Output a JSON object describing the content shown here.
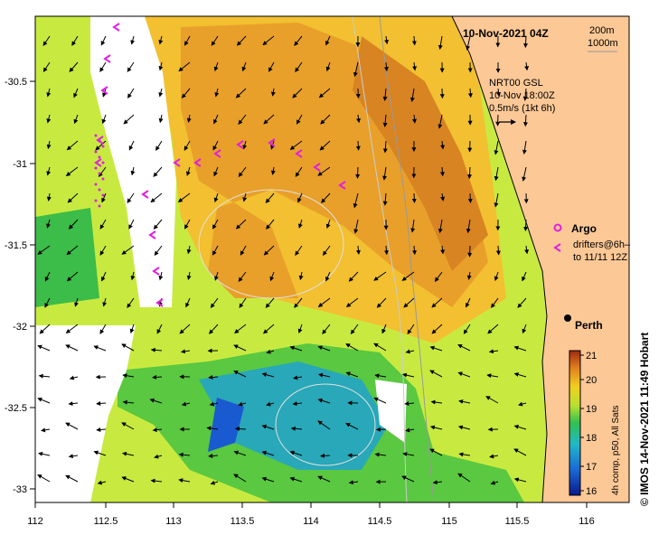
{
  "title": "10-Nov-2021 04Z",
  "contours": {
    "depth1": "200m",
    "depth2": "1000m"
  },
  "velocity": {
    "source": "NRT00 GSL",
    "time": "10-Nov 18:00Z",
    "scale": "0.5m/s (1kt 6h)"
  },
  "legend": {
    "argo": "Argo",
    "drifters": "drifters@6h–",
    "drifters_to": "to 11/11 12Z"
  },
  "place": "Perth",
  "credit": "©  IMOS 14-Nov-2021 11:49 Hobart",
  "colorbar": {
    "caption": "4h comp, p50, All Sats",
    "ticks": [
      "21",
      "20",
      "19",
      "18",
      "17",
      "16"
    ],
    "min": 16,
    "max": 21
  },
  "axes": {
    "lon": [
      "112",
      "112.5",
      "113",
      "113.5",
      "114",
      "114.5",
      "115",
      "115.5",
      "116"
    ],
    "lat": [
      "-30.5",
      "-31",
      "-31.5",
      "-32",
      "-32.5",
      "-33"
    ]
  },
  "colors": {
    "land": "#fcc896",
    "cloud": "#ffffff",
    "warm": "#e09a2a",
    "mid": "#b8e030",
    "cool": "#30b84a",
    "cold": "#2aa8c8",
    "drifter": "#e020e0"
  }
}
